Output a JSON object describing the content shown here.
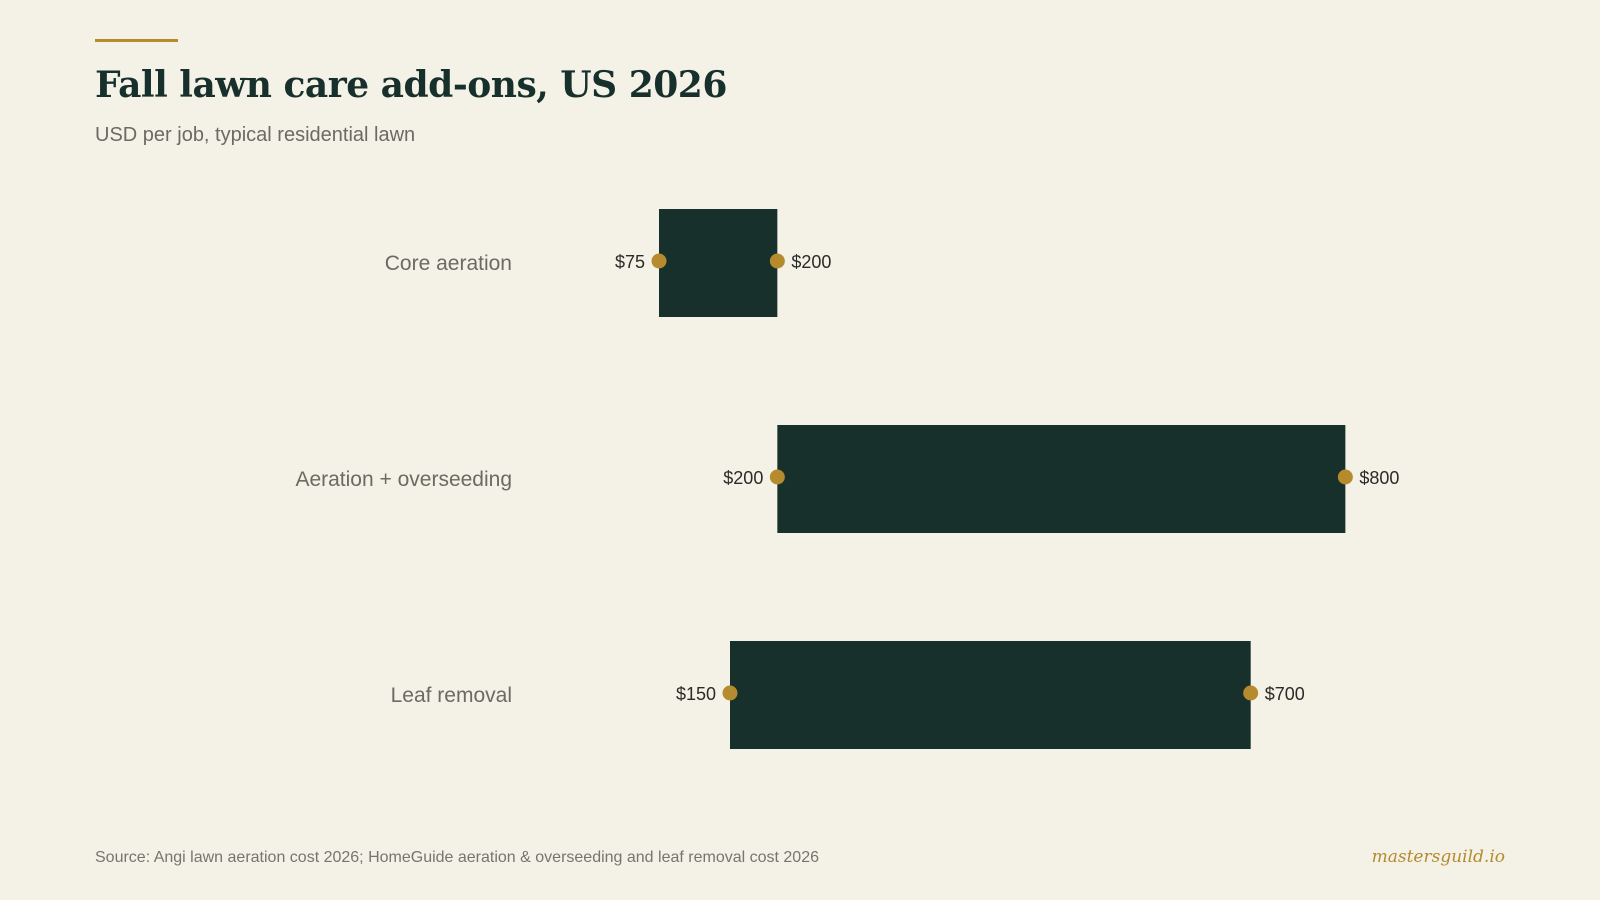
{
  "header": {
    "title": "Fall lawn care add-ons, US 2026",
    "subtitle": "USD per job, typical residential lawn"
  },
  "footer": {
    "source": "Source: Angi lawn aeration cost 2026; HomeGuide aeration & overseeding and leaf removal cost 2026",
    "brand": "mastersguild.io"
  },
  "colors": {
    "background": "#F4F1E7",
    "bar": "#18302C",
    "accent": "#B58B2E",
    "label": "#6B6A63",
    "value_label": "#2B2B28"
  },
  "chart_data": {
    "type": "range-bar",
    "orientation": "horizontal",
    "title": "Fall lawn care add-ons, US 2026",
    "subtitle": "USD per job, typical residential lawn",
    "categories": [
      "Core aeration",
      "Aeration + overseeding",
      "Leaf removal"
    ],
    "series": [
      {
        "low": [
          75,
          200,
          150
        ],
        "high": [
          200,
          800,
          700
        ],
        "low_labels": [
          "$75",
          "$200",
          "$150"
        ],
        "high_labels": [
          "$200",
          "$800",
          "$700"
        ]
      }
    ],
    "xlim": [
      0,
      800
    ],
    "grid": false,
    "legend": "none"
  }
}
